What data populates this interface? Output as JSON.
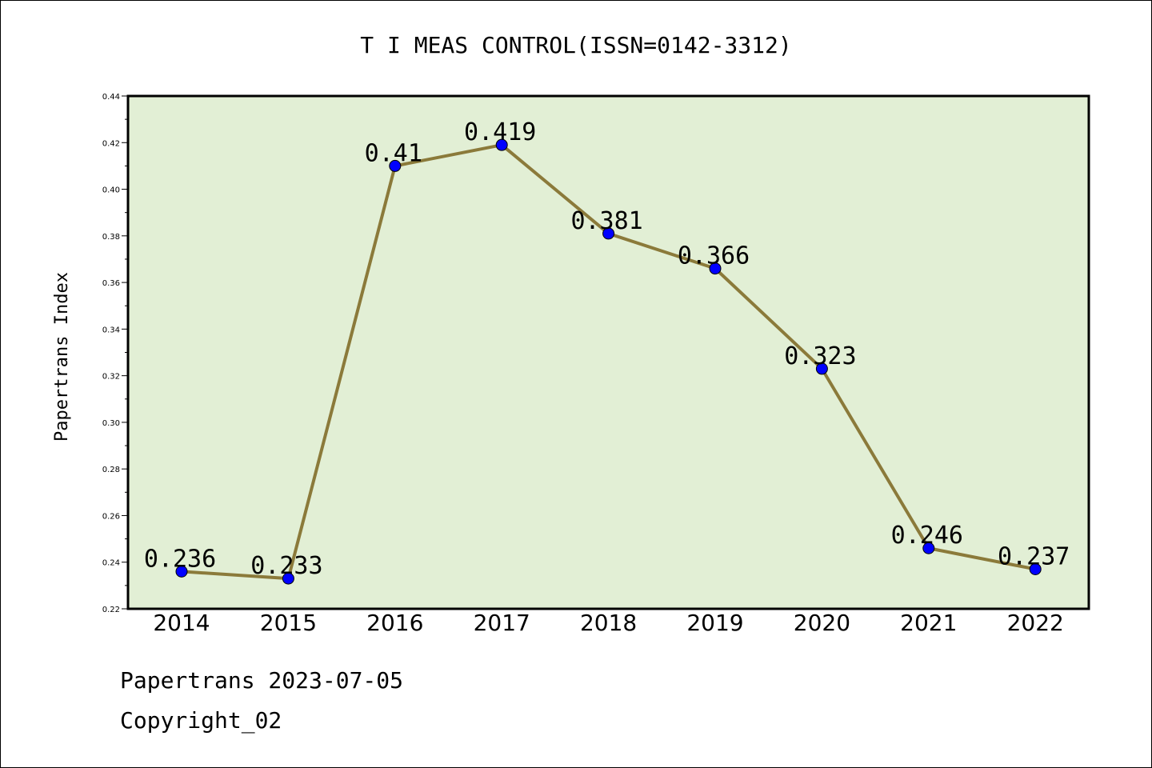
{
  "chart_data": {
    "type": "line",
    "title": "T I MEAS CONTROL(ISSN=0142-3312)",
    "ylabel": "Papertrans Index",
    "xlabel": "",
    "categories": [
      "2014",
      "2015",
      "2016",
      "2017",
      "2018",
      "2019",
      "2020",
      "2021",
      "2022"
    ],
    "series": [
      {
        "values": [
          0.236,
          0.233,
          0.41,
          0.419,
          0.381,
          0.366,
          0.323,
          0.246,
          0.237
        ]
      }
    ],
    "data_labels": [
      "0.236",
      "0.233",
      "0.41",
      "0.419",
      "0.381",
      "0.366",
      "0.323",
      "0.246",
      "0.237"
    ],
    "ylim": [
      0.22,
      0.44
    ],
    "yticks": [
      "0.22",
      "0.24",
      "0.26",
      "0.28",
      "0.30",
      "0.32",
      "0.34",
      "0.36",
      "0.38",
      "0.40",
      "0.42",
      "0.44"
    ],
    "grid": false,
    "legend": "none",
    "colors": {
      "plot_background": "#e2efd5",
      "line": "#8b7a3a",
      "marker": "#0000ff"
    }
  },
  "footer": {
    "line1": "Papertrans 2023-07-05",
    "line2": "Copyright_02"
  }
}
